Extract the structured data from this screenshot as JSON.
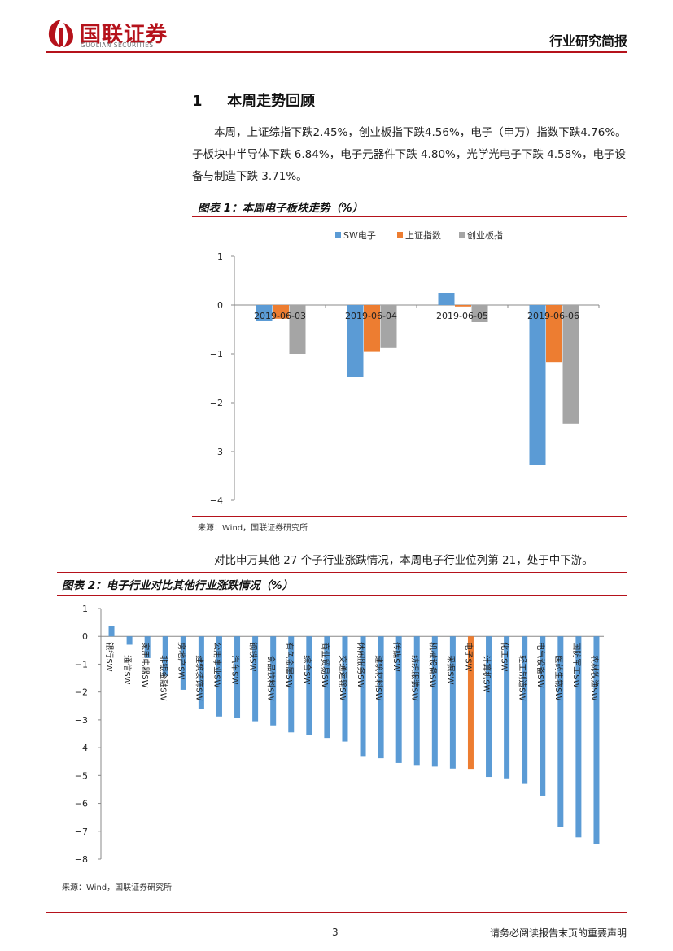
{
  "header": {
    "logo_cn": "国联证券",
    "logo_en": "GUOLIAN SECURITIES",
    "title": "行业研究简报"
  },
  "section": {
    "number": "1",
    "title": "本周走势回顾",
    "paragraph": "本周，上证综指下跌2.45%，创业板指下跌4.56%，电子（申万）指数下跌4.76%。子板块中半导体下跌 6.84%，电子元器件下跌 4.80%，光学光电子下跌 4.58%，电子设备与制造下跌 3.71%。"
  },
  "figure1": {
    "title": "图表 1：本周电子板块走势（%）",
    "source": "来源：Wind，国联证券研究所"
  },
  "paragraph2": "对比申万其他 27 个子行业涨跌情况，本周电子行业位列第 21，处于中下游。",
  "figure2": {
    "title": "图表 2：电子行业对比其他行业涨跌情况（%）",
    "source": "来源：Wind，国联证券研究所"
  },
  "chart_data": [
    {
      "type": "bar",
      "title": "",
      "categories": [
        "2019-06-03",
        "2019-06-04",
        "2019-06-05",
        "2019-06-06"
      ],
      "series": [
        {
          "name": "SW电子",
          "color": "#5b9bd5",
          "values": [
            -0.32,
            -1.48,
            0.25,
            -3.27
          ]
        },
        {
          "name": "上证指数",
          "color": "#ed7d31",
          "values": [
            -0.28,
            -0.96,
            -0.03,
            -1.17
          ]
        },
        {
          "name": "创业板指",
          "color": "#a5a5a5",
          "values": [
            -1.0,
            -0.88,
            -0.35,
            -2.43
          ]
        }
      ],
      "ylim": [
        -4,
        1
      ],
      "yticks": [
        "1",
        "0",
        "−1",
        "−2",
        "−3",
        "−4"
      ],
      "legend": "top"
    },
    {
      "type": "bar",
      "title": "",
      "categories": [
        "银行SW",
        "通信SW",
        "家用电器SW",
        "非银金融SW",
        "房地产SW",
        "建筑装饰SW",
        "公用事业SW",
        "汽车SW",
        "钢铁SW",
        "食品饮料SW",
        "有色金属SW",
        "综合SW",
        "商业贸易SW",
        "交通运输SW",
        "休闲服务SW",
        "建筑材料SW",
        "传媒SW",
        "纺织服装SW",
        "机械设备SW",
        "采掘SW",
        "电子SW",
        "计算机SW",
        "化工SW",
        "轻工制造SW",
        "电气设备SW",
        "医药生物SW",
        "国防军工SW",
        "农林牧渔SW"
      ],
      "values": [
        0.38,
        -0.3,
        -0.78,
        -1.42,
        -1.92,
        -2.62,
        -2.88,
        -2.92,
        -3.05,
        -3.2,
        -3.45,
        -3.55,
        -3.65,
        -3.78,
        -4.3,
        -4.38,
        -4.55,
        -4.62,
        -4.68,
        -4.75,
        -4.76,
        -5.05,
        -5.1,
        -5.3,
        -5.72,
        -6.85,
        -7.22,
        -7.45
      ],
      "highlight_index": 20,
      "bar_color": "#5b9bd5",
      "highlight_color": "#ed7d31",
      "ylim": [
        -8,
        1
      ],
      "yticks": [
        "1",
        "0",
        "−1",
        "−2",
        "−3",
        "−4",
        "−5",
        "−6",
        "−7",
        "−8"
      ]
    }
  ],
  "footer": {
    "page": "3",
    "disclaimer": "请务必阅读报告末页的重要声明"
  }
}
